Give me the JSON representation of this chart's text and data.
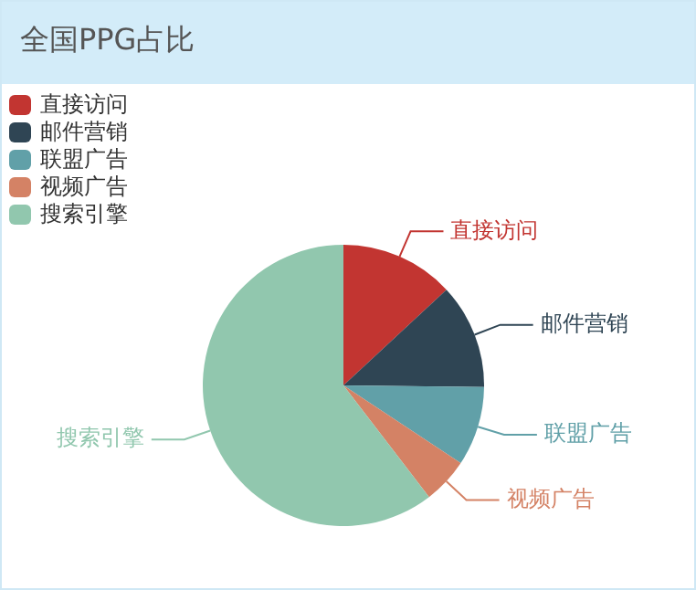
{
  "chart_data": {
    "type": "pie",
    "title": "全国PPG占比",
    "categories": [
      "直接访问",
      "邮件营销",
      "联盟广告",
      "视频广告",
      "搜索引擎"
    ],
    "values": [
      13.08,
      12.1,
      9.13,
      5.27,
      60.42
    ],
    "colors": [
      "#c23531",
      "#2f4554",
      "#61a0a8",
      "#d48265",
      "#91c7ae"
    ],
    "legend": "top left"
  }
}
